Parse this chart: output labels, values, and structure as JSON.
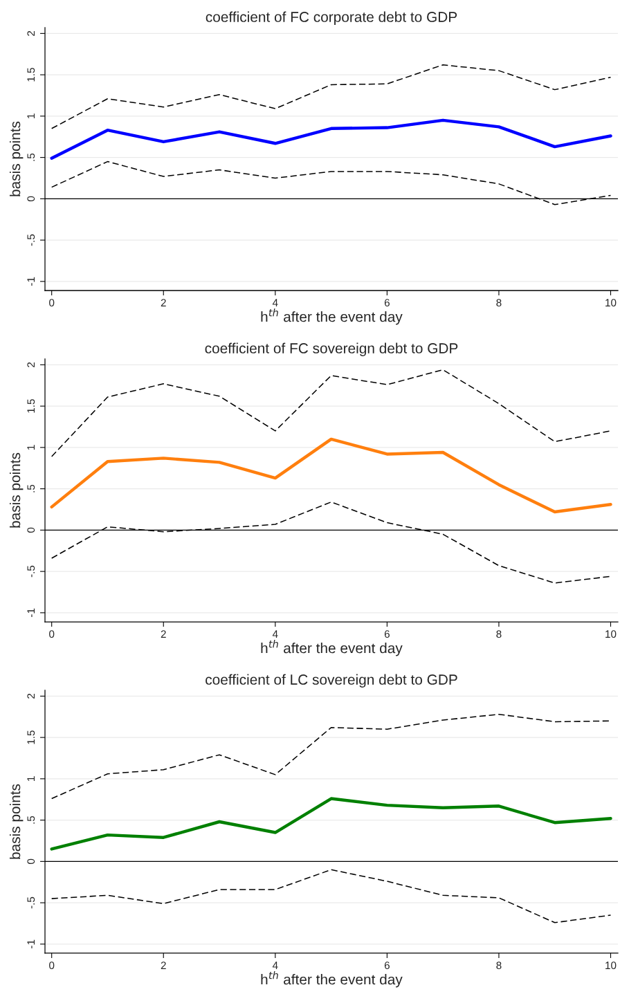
{
  "chart_data": [
    {
      "type": "line",
      "title": "coefficient of FC corporate debt to GDP",
      "xlabel": "h$^{th}$ after the event day",
      "ylabel": "basis points",
      "x": [
        0,
        1,
        2,
        3,
        4,
        5,
        6,
        7,
        8,
        9,
        10
      ],
      "series": [
        {
          "color": "#0000ff",
          "line_style": "solid",
          "values": [
            0.49,
            0.83,
            0.69,
            0.81,
            0.67,
            0.85,
            0.86,
            0.95,
            0.87,
            0.63,
            0.76
          ]
        },
        {
          "color": "#000000",
          "line_style": "dashed",
          "values": [
            0.85,
            1.21,
            1.11,
            1.26,
            1.09,
            1.38,
            1.39,
            1.62,
            1.55,
            1.32,
            1.47
          ]
        },
        {
          "color": "#000000",
          "line_style": "dashed",
          "values": [
            0.14,
            0.45,
            0.27,
            0.35,
            0.25,
            0.33,
            0.33,
            0.29,
            0.18,
            -0.07,
            0.04
          ]
        }
      ],
      "xlim": [
        -0.12,
        10.13
      ],
      "ylim": [
        -1.11,
        2.07
      ],
      "xticks": [
        0,
        2,
        4,
        6,
        8,
        10
      ],
      "yticks": [
        {
          "value": -1,
          "label": "-1"
        },
        {
          "value": -0.5,
          "label": "-.5"
        },
        {
          "value": 0,
          "label": "0"
        },
        {
          "value": 0.5,
          "label": ".5"
        },
        {
          "value": 1,
          "label": "1"
        },
        {
          "value": 1.5,
          "label": "1.5"
        },
        {
          "value": 2,
          "label": "2"
        }
      ],
      "grid": "y",
      "ref_lines": [
        {
          "axis": "y",
          "value": 0,
          "color": "#000000"
        }
      ],
      "marker": "none",
      "legend": false
    },
    {
      "type": "line",
      "title": "coefficient of FC sovereign debt to GDP",
      "xlabel": "h$^{th}$ after the event day",
      "ylabel": "basis points",
      "x": [
        0,
        1,
        2,
        3,
        4,
        5,
        6,
        7,
        8,
        9,
        10
      ],
      "series": [
        {
          "color": "#ff7f0e",
          "line_style": "solid",
          "values": [
            0.28,
            0.83,
            0.87,
            0.82,
            0.63,
            1.1,
            0.92,
            0.94,
            0.55,
            0.22,
            0.31
          ]
        },
        {
          "color": "#000000",
          "line_style": "dashed",
          "values": [
            0.89,
            1.61,
            1.77,
            1.62,
            1.2,
            1.87,
            1.76,
            1.94,
            1.53,
            1.07,
            1.2
          ]
        },
        {
          "color": "#000000",
          "line_style": "dashed",
          "values": [
            -0.34,
            0.04,
            -0.02,
            0.02,
            0.07,
            0.34,
            0.09,
            -0.05,
            -0.43,
            -0.64,
            -0.56
          ]
        }
      ],
      "xlim": [
        -0.12,
        10.13
      ],
      "ylim": [
        -1.11,
        2.07
      ],
      "xticks": [
        0,
        2,
        4,
        6,
        8,
        10
      ],
      "yticks": [
        {
          "value": -1,
          "label": "-1"
        },
        {
          "value": -0.5,
          "label": "-.5"
        },
        {
          "value": 0,
          "label": "0"
        },
        {
          "value": 0.5,
          "label": ".5"
        },
        {
          "value": 1,
          "label": "1"
        },
        {
          "value": 1.5,
          "label": "1.5"
        },
        {
          "value": 2,
          "label": "2"
        }
      ],
      "grid": "y",
      "ref_lines": [
        {
          "axis": "y",
          "value": 0,
          "color": "#000000"
        }
      ],
      "marker": "none",
      "legend": false
    },
    {
      "type": "line",
      "title": "coefficient of LC sovereign debt to GDP",
      "xlabel": "h$^{th}$ after the event day",
      "ylabel": "basis points",
      "x": [
        0,
        1,
        2,
        3,
        4,
        5,
        6,
        7,
        8,
        9,
        10
      ],
      "series": [
        {
          "color": "#008000",
          "line_style": "solid",
          "values": [
            0.15,
            0.32,
            0.29,
            0.48,
            0.35,
            0.76,
            0.68,
            0.65,
            0.67,
            0.47,
            0.52
          ]
        },
        {
          "color": "#000000",
          "line_style": "dashed",
          "values": [
            0.76,
            1.06,
            1.11,
            1.29,
            1.05,
            1.62,
            1.6,
            1.71,
            1.78,
            1.69,
            1.7
          ]
        },
        {
          "color": "#000000",
          "line_style": "dashed",
          "values": [
            -0.45,
            -0.41,
            -0.51,
            -0.34,
            -0.34,
            -0.1,
            -0.24,
            -0.41,
            -0.44,
            -0.74,
            -0.65
          ]
        }
      ],
      "xlim": [
        -0.12,
        10.13
      ],
      "ylim": [
        -1.11,
        2.07
      ],
      "xticks": [
        0,
        2,
        4,
        6,
        8,
        10
      ],
      "yticks": [
        {
          "value": -1,
          "label": "-1"
        },
        {
          "value": -0.5,
          "label": "-.5"
        },
        {
          "value": 0,
          "label": "0"
        },
        {
          "value": 0.5,
          "label": ".5"
        },
        {
          "value": 1,
          "label": "1"
        },
        {
          "value": 1.5,
          "label": "1.5"
        },
        {
          "value": 2,
          "label": "2"
        }
      ],
      "grid": "y",
      "ref_lines": [
        {
          "axis": "y",
          "value": 0,
          "color": "#000000"
        }
      ],
      "marker": "none",
      "legend": false
    }
  ]
}
